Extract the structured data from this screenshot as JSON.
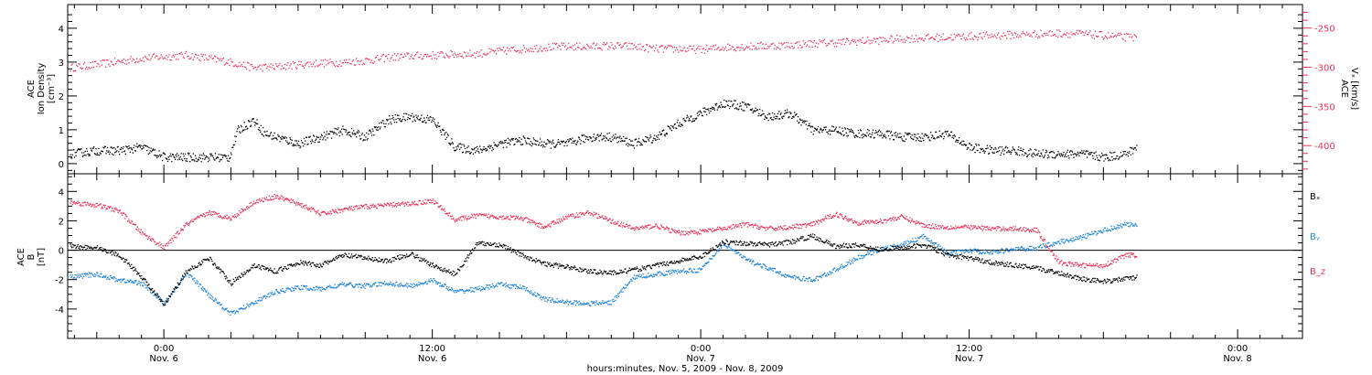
{
  "colors": {
    "velocity": "#e8325a",
    "density": "#000000",
    "bx": "#000000",
    "by": "#1a82d8",
    "bz": "#e8325a",
    "axis": "#000000"
  },
  "time_axis": {
    "label": "hours:minutes, Nov.  5, 2009 - Nov.  8, 2009",
    "ticks": [
      {
        "time": "0:00",
        "date": "Nov. 6",
        "hour": 0
      },
      {
        "time": "12:00",
        "date": "Nov. 6",
        "hour": 12
      },
      {
        "time": "0:00",
        "date": "Nov. 7",
        "hour": 24
      },
      {
        "time": "12:00",
        "date": "Nov. 7",
        "hour": 36
      },
      {
        "time": "0:00",
        "date": "Nov. 8",
        "hour": 48
      }
    ]
  },
  "chart_data": [
    {
      "type": "scatter",
      "panel": "plasma",
      "xlabel": "hours:minutes, Nov.  5, 2009 - Nov.  8, 2009",
      "xlim": [
        -4.3,
        50.9
      ],
      "ylabel_left": [
        "ACE",
        "Ion Density",
        "[cm⁻³]"
      ],
      "ylim_left": [
        -0.3,
        4.7
      ],
      "yticks_left": [
        "0",
        "1",
        "2",
        "3",
        "4"
      ],
      "ylabel_right": [
        "ACE",
        "Vₓ [km/s]"
      ],
      "ylim_right": [
        -436,
        -220
      ],
      "yticks_right": [
        "-250",
        "-300",
        "-350",
        "-400"
      ],
      "series": [
        {
          "axis": "left",
          "color": "#000000",
          "x": [
            -4.2,
            -3,
            -2,
            -1,
            0,
            1,
            2,
            2.9,
            3.3,
            4,
            4.5,
            5,
            6,
            7,
            8,
            9,
            10,
            11,
            12,
            13,
            14,
            15,
            16,
            17,
            18,
            19,
            20,
            21,
            22,
            23,
            24,
            25,
            26,
            27,
            28,
            29,
            30,
            31,
            32,
            33,
            34,
            35,
            36,
            37,
            38,
            39,
            40,
            41,
            42,
            43,
            43.5
          ],
          "y": [
            0.3,
            0.4,
            0.4,
            0.5,
            0.2,
            0.2,
            0.2,
            0.2,
            1.0,
            1.3,
            0.9,
            0.8,
            0.6,
            0.8,
            1.0,
            0.8,
            1.3,
            1.4,
            1.3,
            0.5,
            0.4,
            0.6,
            0.7,
            0.6,
            0.6,
            0.8,
            0.8,
            0.6,
            0.8,
            1.2,
            1.5,
            1.8,
            1.7,
            1.4,
            1.5,
            1.0,
            1.0,
            0.9,
            0.9,
            0.8,
            0.8,
            0.9,
            0.5,
            0.4,
            0.4,
            0.3,
            0.3,
            0.3,
            0.2,
            0.3,
            0.5
          ]
        },
        {
          "axis": "right",
          "color": "#e8325a",
          "x": [
            -4.2,
            -3,
            -2,
            -1,
            0,
            1,
            2,
            3,
            4,
            5,
            6,
            7,
            8,
            9,
            10,
            11,
            12,
            13,
            14,
            15,
            16,
            17,
            18,
            19,
            20,
            21,
            22,
            23,
            24,
            25,
            26,
            27,
            28,
            29,
            30,
            31,
            32,
            33,
            34,
            35,
            36,
            37,
            38,
            39,
            40,
            41,
            42,
            43,
            43.5
          ],
          "y": [
            -300,
            -296,
            -292,
            -288,
            -286,
            -284,
            -288,
            -293,
            -300,
            -299,
            -296,
            -294,
            -293,
            -291,
            -287,
            -285,
            -284,
            -283,
            -282,
            -279,
            -276,
            -274,
            -273,
            -273,
            -272,
            -273,
            -276,
            -276,
            -277,
            -274,
            -273,
            -272,
            -271,
            -269,
            -268,
            -266,
            -265,
            -263,
            -262,
            -261,
            -260,
            -259,
            -258,
            -257,
            -256,
            -257,
            -259,
            -261,
            -262
          ]
        }
      ]
    },
    {
      "type": "scatter",
      "panel": "magnetic-field",
      "xlim": [
        -4.3,
        50.9
      ],
      "ylabel_left": [
        "ACE",
        "B",
        "[nT]"
      ],
      "ylim_left": [
        -6,
        5.2
      ],
      "yticks_left": [
        "4",
        "2",
        "0",
        "-2",
        "-4"
      ],
      "series": [
        {
          "name": "Bₓ",
          "color": "#000000",
          "x": [
            -4.2,
            -3,
            -2,
            -1,
            0,
            1,
            2,
            3,
            4,
            5,
            6,
            7,
            8,
            9,
            10,
            11,
            12,
            13,
            14,
            15,
            16,
            17,
            18,
            19,
            20,
            21,
            22,
            23,
            24,
            25,
            26,
            27,
            28,
            29,
            30,
            31,
            32,
            33,
            34,
            35,
            36,
            37,
            38,
            39,
            40,
            41,
            42,
            43,
            43.5
          ],
          "y": [
            0.3,
            0.2,
            -0.3,
            -1.8,
            -3.7,
            -1.4,
            -0.5,
            -2.2,
            -1.0,
            -1.4,
            -0.8,
            -1.0,
            -0.3,
            -0.5,
            -0.7,
            -0.2,
            -1.0,
            -1.6,
            0.5,
            0.4,
            -0.3,
            -0.9,
            -1.1,
            -1.4,
            -1.5,
            -1.3,
            -1.0,
            -0.7,
            -0.4,
            0.6,
            0.5,
            0.4,
            0.6,
            1.0,
            0.3,
            0.4,
            0.1,
            0.2,
            0.4,
            -0.3,
            -0.5,
            -0.8,
            -1.0,
            -1.2,
            -1.5,
            -1.9,
            -2.1,
            -1.9,
            -1.8
          ]
        },
        {
          "name": "Bᵧ",
          "color": "#1a82d8",
          "x": [
            -4.2,
            -3,
            -2,
            -1,
            0,
            1,
            2,
            3,
            4,
            5,
            6,
            7,
            8,
            9,
            10,
            11,
            12,
            13,
            14,
            15,
            16,
            17,
            18,
            19,
            20,
            21,
            22,
            23,
            24,
            25,
            26,
            27,
            28,
            29,
            30,
            31,
            32,
            33,
            34,
            35,
            36,
            37,
            38,
            39,
            40,
            41,
            42,
            43,
            43.5
          ],
          "y": [
            -1.8,
            -1.6,
            -2.0,
            -2.2,
            -3.6,
            -1.5,
            -3.0,
            -4.3,
            -3.5,
            -2.8,
            -2.5,
            -2.6,
            -2.3,
            -2.4,
            -2.2,
            -2.4,
            -2.0,
            -2.8,
            -2.6,
            -2.3,
            -2.5,
            -3.3,
            -3.5,
            -3.6,
            -3.5,
            -1.8,
            -1.6,
            -1.4,
            -1.3,
            0.5,
            -0.6,
            -1.2,
            -1.8,
            -2.0,
            -1.3,
            -0.5,
            0.1,
            0.4,
            1.0,
            -0.2,
            0.0,
            -0.1,
            0.1,
            0.2,
            0.6,
            0.9,
            1.4,
            1.8,
            1.7
          ]
        },
        {
          "name": "B_z",
          "color": "#e8325a",
          "x": [
            -4.2,
            -3,
            -2,
            -1,
            0,
            1,
            2,
            3,
            4,
            5,
            6,
            7,
            8,
            9,
            10,
            11,
            12,
            13,
            14,
            15,
            16,
            17,
            18,
            19,
            20,
            21,
            22,
            23,
            24,
            25,
            26,
            27,
            28,
            29,
            30,
            31,
            32,
            33,
            34,
            35,
            36,
            37,
            38,
            39,
            40,
            41,
            42,
            43,
            43.5
          ],
          "y": [
            3.3,
            3.1,
            2.7,
            1.2,
            0.2,
            1.8,
            2.6,
            2.2,
            3.3,
            3.7,
            3.2,
            2.5,
            2.8,
            3.0,
            3.1,
            3.2,
            3.4,
            2.1,
            2.4,
            2.3,
            2.2,
            1.6,
            2.3,
            2.6,
            2.0,
            1.5,
            1.7,
            1.2,
            1.3,
            1.5,
            1.8,
            1.5,
            1.6,
            1.8,
            2.5,
            1.9,
            2.0,
            2.3,
            1.7,
            1.6,
            1.6,
            1.5,
            1.5,
            1.4,
            -0.8,
            -1.0,
            -1.0,
            -0.3,
            -0.3
          ]
        }
      ]
    }
  ]
}
